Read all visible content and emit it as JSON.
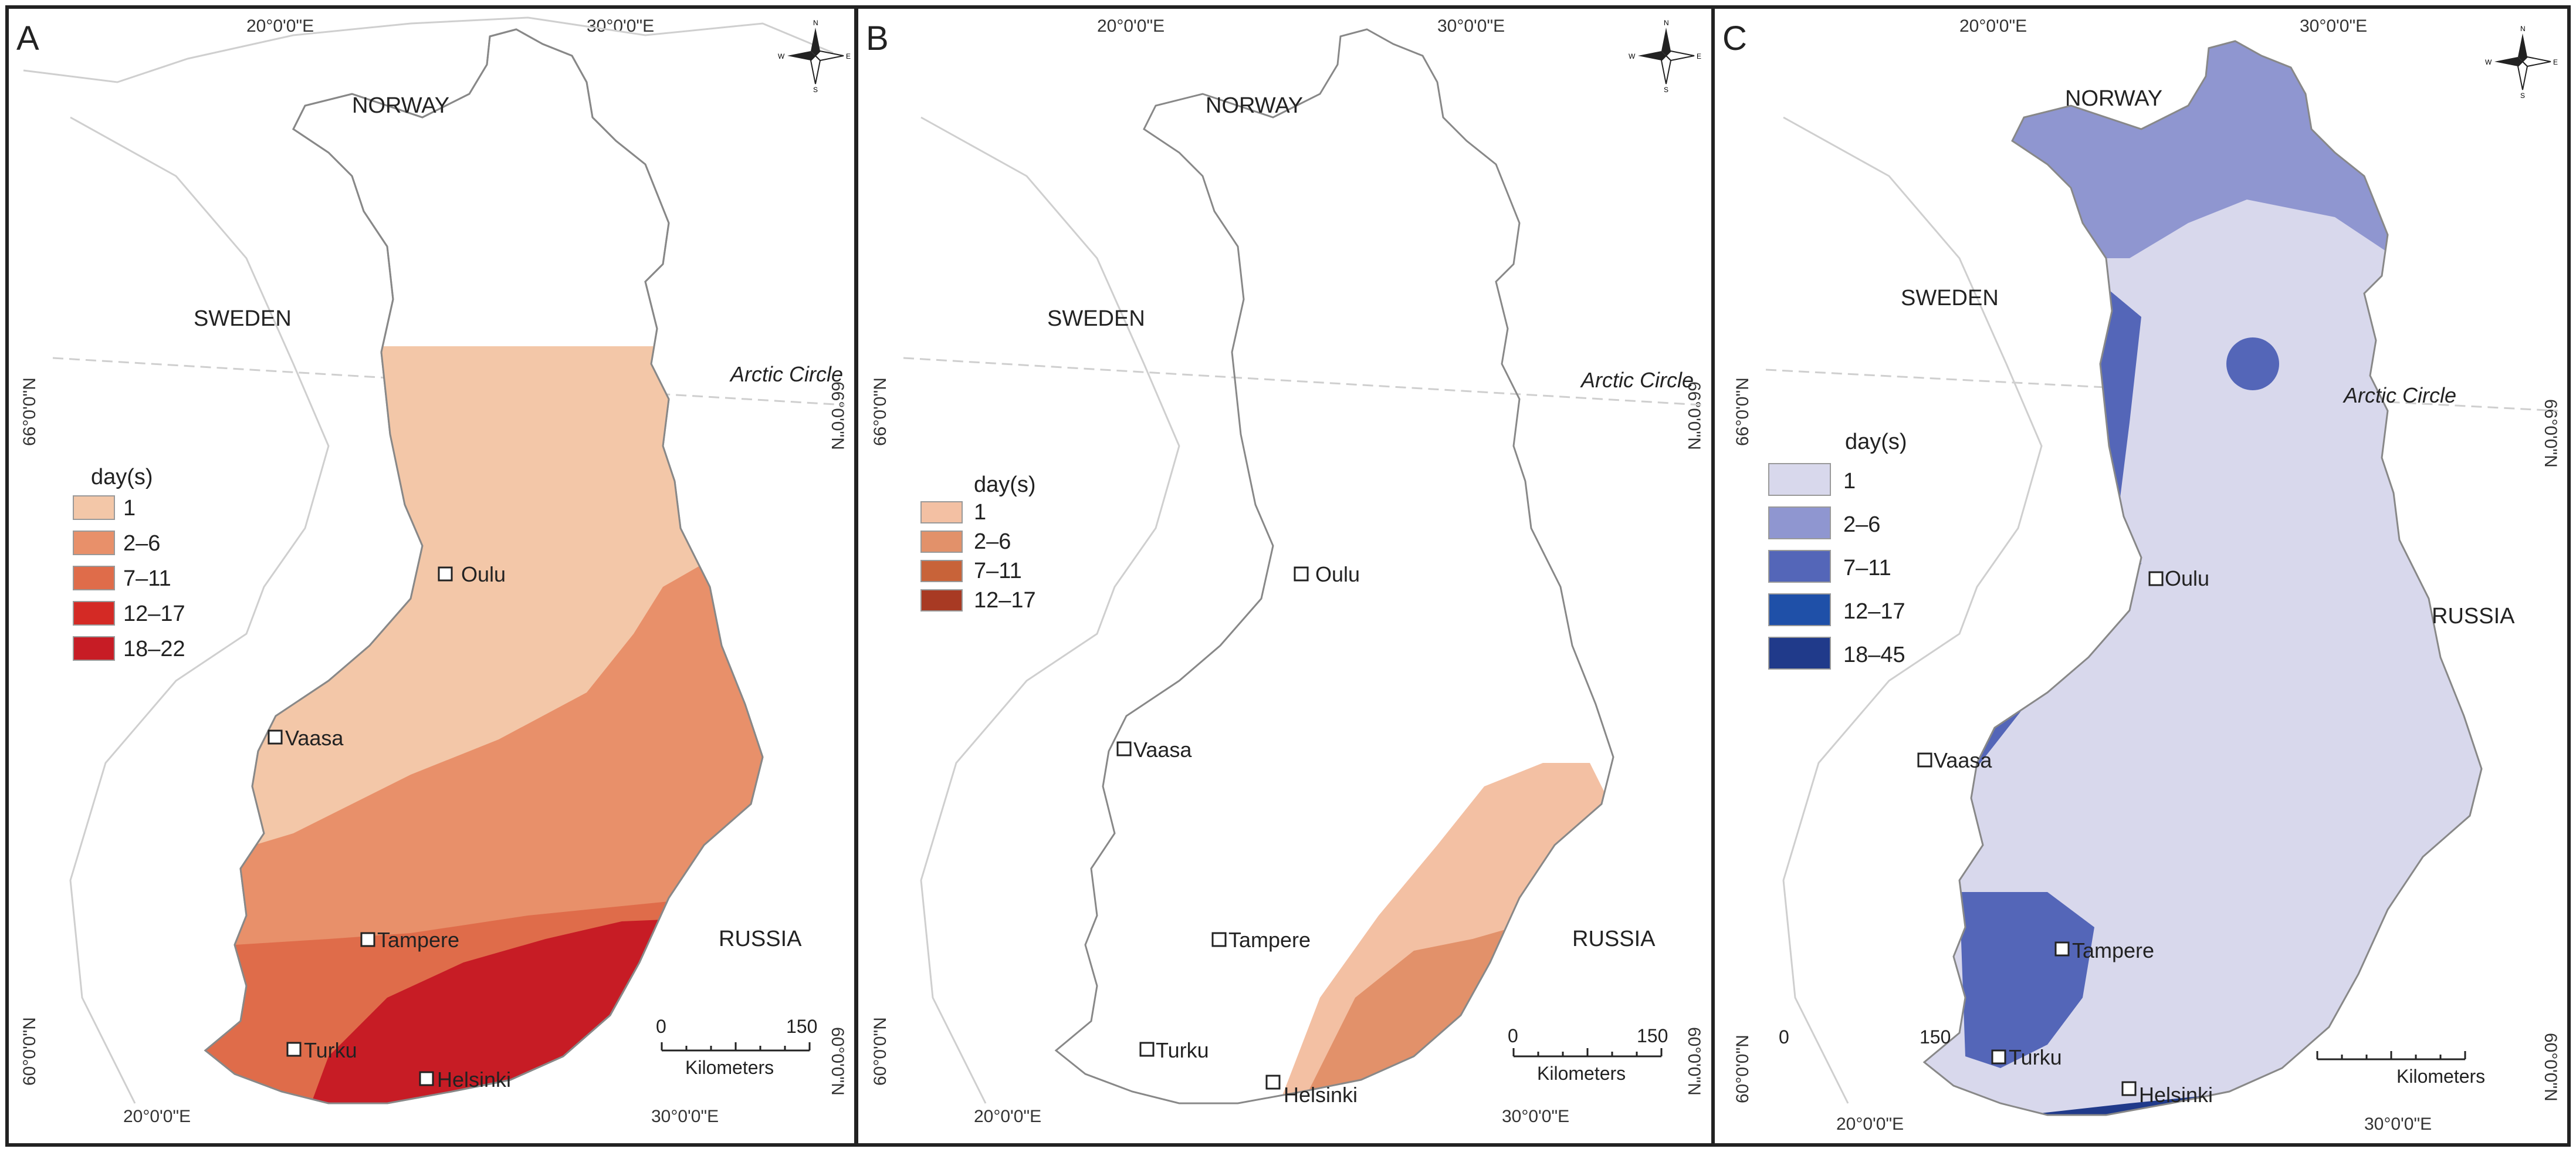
{
  "panels": [
    {
      "id": "A",
      "letter": "A",
      "legend_title": "day(s)",
      "legend": [
        {
          "label": "1",
          "color": "#f3c7a8"
        },
        {
          "label": "2–6",
          "color": "#e8906a"
        },
        {
          "label": "7–11",
          "color": "#df6c4a"
        },
        {
          "label": "12–17",
          "color": "#d42a25"
        },
        {
          "label": "18–22",
          "color": "#c71c25"
        }
      ]
    },
    {
      "id": "B",
      "letter": "B",
      "legend_title": "day(s)",
      "legend": [
        {
          "label": "1",
          "color": "#f3c0a3"
        },
        {
          "label": "2–6",
          "color": "#e2916a"
        },
        {
          "label": "7–11",
          "color": "#c86339"
        },
        {
          "label": "12–17",
          "color": "#a83a23"
        }
      ]
    },
    {
      "id": "C",
      "letter": "C",
      "legend_title": "day(s)",
      "legend": [
        {
          "label": "1",
          "color": "#d8d8ec"
        },
        {
          "label": "2–6",
          "color": "#8f96d0"
        },
        {
          "label": "7–11",
          "color": "#5466b8"
        },
        {
          "label": "12–17",
          "color": "#1f50a8"
        },
        {
          "label": "18–45",
          "color": "#203a8a"
        }
      ]
    }
  ],
  "labels": {
    "norway": "NORWAY",
    "sweden": "SWEDEN",
    "russia": "RUSSIA",
    "arctic_circle": "Arctic Circle",
    "lon_20": "20°0'0\"E",
    "lon_30": "30°0'0\"E",
    "lat_66": "66°0'0\"N",
    "lat_60": "60°0'0\"N"
  },
  "cities": [
    "Oulu",
    "Vaasa",
    "Tampere",
    "Turku",
    "Helsinki"
  ],
  "scalebar": {
    "zero": "0",
    "max": "150",
    "unit": "Kilometers"
  },
  "compass": {
    "n": "N",
    "s": "S",
    "e": "E",
    "w": "W"
  }
}
